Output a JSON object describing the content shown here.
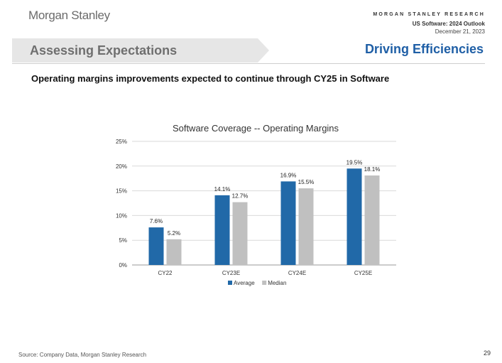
{
  "header": {
    "logo": "Morgan Stanley",
    "research": "MORGAN STANLEY RESEARCH",
    "report_title": "US Software: 2024 Outlook",
    "date": "December 21, 2023"
  },
  "banner": {
    "text": "Assessing Expectations",
    "bg_color": "#e6e6e6"
  },
  "section_title": "Driving Efficiencies",
  "subtitle": "Operating margins improvements expected to continue through CY25 in Software",
  "chart_data": {
    "type": "bar",
    "title": "Software Coverage -- Operating Margins",
    "categories": [
      "CY22",
      "CY23E",
      "CY24E",
      "CY25E"
    ],
    "series": [
      {
        "name": "Average",
        "values": [
          7.6,
          14.1,
          16.9,
          19.5
        ],
        "labels": [
          "7.6%",
          "14.1%",
          "16.9%",
          "19.5%"
        ],
        "color": "#2169a8"
      },
      {
        "name": "Median",
        "values": [
          5.2,
          12.7,
          15.5,
          18.1
        ],
        "labels": [
          "5.2%",
          "12.7%",
          "15.5%",
          "18.1%"
        ],
        "color": "#c0c0c0"
      }
    ],
    "ylim": [
      0,
      25
    ],
    "yticks": [
      0,
      5,
      10,
      15,
      20,
      25
    ],
    "ytick_labels": [
      "0%",
      "5%",
      "10%",
      "15%",
      "20%",
      "25%"
    ],
    "grid": true,
    "legend": "bottom"
  },
  "footer": {
    "source": "Source: Company Data, Morgan Stanley Research",
    "page_number": "29"
  }
}
